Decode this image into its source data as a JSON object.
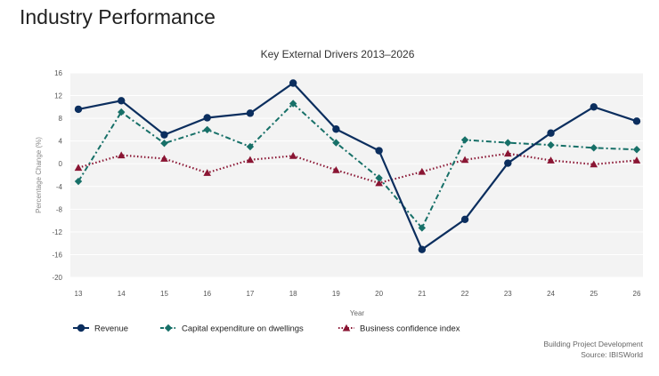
{
  "page": {
    "title": "Industry Performance"
  },
  "footer": {
    "line1": "Building Project Development",
    "line2": "Source: IBISWorld"
  },
  "colors": {
    "revenue": "#0b2e5e",
    "capex": "#177068",
    "confidence": "#8a1533",
    "plot_bg": "#f3f3f3",
    "grid": "#ffffff",
    "axis_text": "#555555"
  },
  "chart_data": {
    "type": "line",
    "title": "Key External Drivers 2013–2026",
    "xlabel": "Year",
    "ylabel": "Percentage Change (%)",
    "ylim": [
      -20,
      16
    ],
    "yticks": [
      16,
      12,
      8,
      4,
      0,
      -4,
      -8,
      -12,
      -16,
      -20
    ],
    "categories": [
      "13",
      "14",
      "15",
      "16",
      "17",
      "18",
      "19",
      "20",
      "21",
      "22",
      "23",
      "24",
      "25",
      "26"
    ],
    "legend_position": "bottom-left",
    "series": [
      {
        "name": "Revenue",
        "marker": "circle",
        "dash": "solid",
        "values": [
          9.6,
          11.1,
          5.1,
          8.1,
          8.9,
          14.2,
          6.1,
          2.3,
          -15.1,
          -9.8,
          0.1,
          5.4,
          10.0,
          7.5
        ]
      },
      {
        "name": "Capital expenditure on dwellings",
        "marker": "diamond",
        "dash": "dashdot",
        "values": [
          -3.1,
          9.1,
          3.6,
          6.0,
          3.0,
          10.6,
          3.7,
          -2.5,
          -11.3,
          4.2,
          3.7,
          3.3,
          2.8,
          2.5
        ]
      },
      {
        "name": "Business confidence index",
        "marker": "triangle",
        "dash": "dotted",
        "values": [
          -0.7,
          1.5,
          0.9,
          -1.6,
          0.7,
          1.4,
          -1.1,
          -3.4,
          -1.4,
          0.7,
          1.8,
          0.6,
          -0.1,
          0.6
        ]
      }
    ]
  }
}
